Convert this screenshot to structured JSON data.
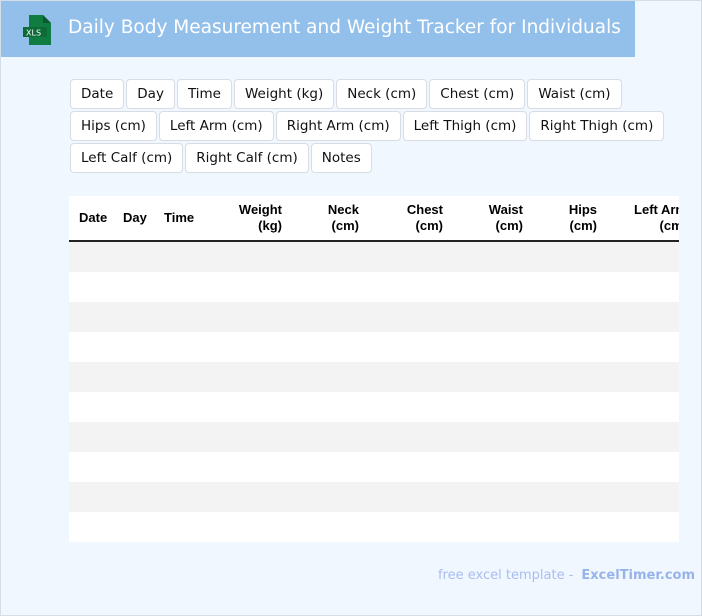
{
  "header": {
    "title": "Daily Body Measurement and Weight Tracker for Individuals",
    "logo_text": "XLS",
    "logo_color": "#107c41"
  },
  "chips": [
    "Date",
    "Day",
    "Time",
    "Weight (kg)",
    "Neck (cm)",
    "Chest (cm)",
    "Waist (cm)",
    "Hips (cm)",
    "Left Arm (cm)",
    "Right Arm (cm)",
    "Left Thigh (cm)",
    "Right Thigh (cm)",
    "Left Calf (cm)",
    "Right Calf (cm)",
    "Notes"
  ],
  "table": {
    "columns": [
      [
        "Date",
        ""
      ],
      [
        "Day",
        ""
      ],
      [
        "Time",
        ""
      ],
      [
        "Weight",
        "(kg)"
      ],
      [
        "Neck",
        "(cm)"
      ],
      [
        "Chest",
        "(cm)"
      ],
      [
        "Waist",
        "(cm)"
      ],
      [
        "Hips",
        "(cm)"
      ],
      [
        "Left Arm",
        "(cm)"
      ]
    ],
    "row_count": 10
  },
  "footer": {
    "text": "free excel template -",
    "brand": "ExcelTimer.com"
  }
}
